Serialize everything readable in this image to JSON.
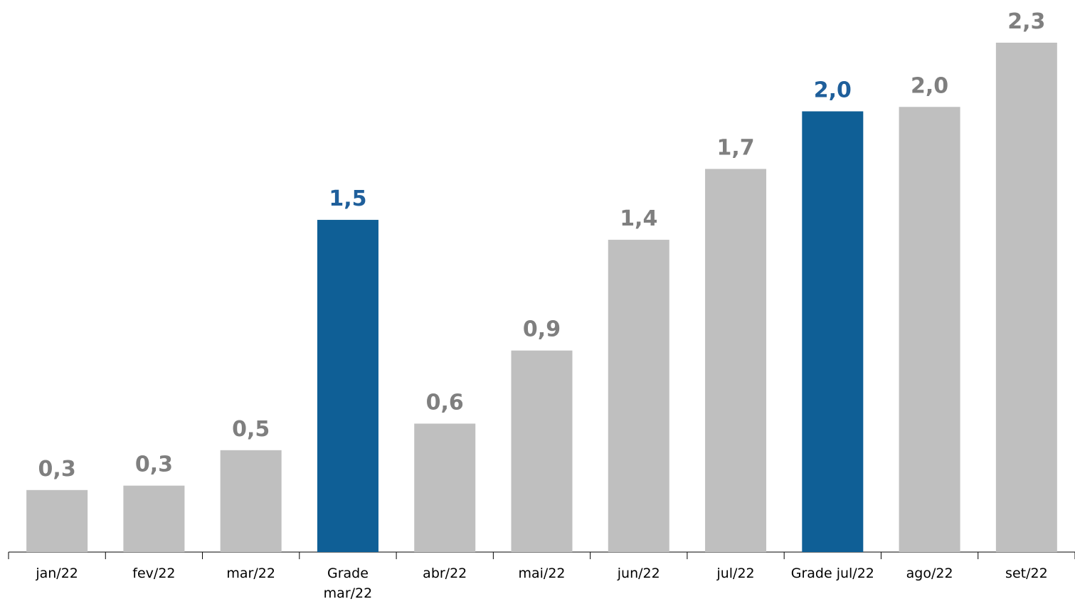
{
  "chart_data": {
    "type": "bar",
    "categories": [
      "jan/22",
      "fev/22",
      "mar/22",
      "Grade mar/22",
      "abr/22",
      "mai/22",
      "jun/22",
      "jul/22",
      "Grade jul/22",
      "ago/22",
      "set/22"
    ],
    "values": [
      0.28,
      0.3,
      0.46,
      1.5,
      0.58,
      0.91,
      1.41,
      1.73,
      1.99,
      2.01,
      2.3
    ],
    "value_labels": [
      "0,3",
      "0,3",
      "0,5",
      "1,5",
      "0,6",
      "0,9",
      "1,4",
      "1,7",
      "2,0",
      "2,0",
      "2,3"
    ],
    "colors": [
      "#bfbfbf",
      "#bfbfbf",
      "#bfbfbf",
      "#0f5f96",
      "#bfbfbf",
      "#bfbfbf",
      "#bfbfbf",
      "#bfbfbf",
      "#0f5f96",
      "#bfbfbf",
      "#bfbfbf"
    ],
    "label_colors": [
      "#7f7f7f",
      "#7f7f7f",
      "#7f7f7f",
      "#1f5f9b",
      "#7f7f7f",
      "#7f7f7f",
      "#7f7f7f",
      "#7f7f7f",
      "#1f5f9b",
      "#7f7f7f",
      "#7f7f7f"
    ],
    "ylim": [
      0,
      2.3
    ]
  }
}
